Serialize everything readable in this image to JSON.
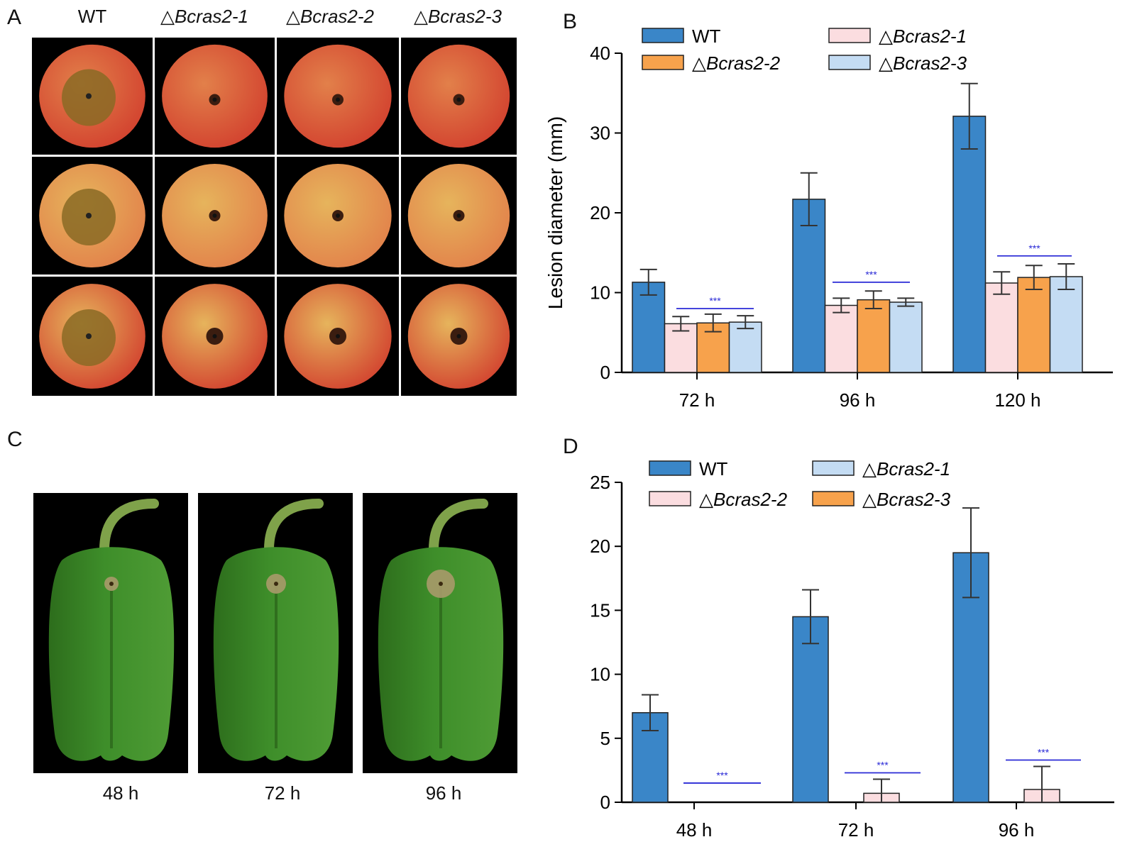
{
  "panels": {
    "a": {
      "letter": "A"
    },
    "b": {
      "letter": "B"
    },
    "c": {
      "letter": "C"
    },
    "d": {
      "letter": "D"
    }
  },
  "apple_grid": {
    "columns": [
      {
        "prefix": "",
        "name": "WT"
      },
      {
        "prefix": "△",
        "name": "Bcras2-1"
      },
      {
        "prefix": "△",
        "name": "Bcras2-2"
      },
      {
        "prefix": "△",
        "name": "Bcras2-3"
      }
    ],
    "lesion_colors": {
      "wt": "#8a6a25",
      "mutant": "#3b1d10"
    },
    "apple_colors": [
      "#d2402e",
      "#e2804a",
      "#e6b45c"
    ]
  },
  "pepper_photos": {
    "labels": [
      "48 h",
      "72 h",
      "96 h"
    ],
    "pepper_color": "#3e8e2a"
  },
  "colors": {
    "wt": "#3a86c8",
    "pink": "#fbdde0",
    "orange": "#f7a24c",
    "lightblue": "#c4dcf3",
    "sig": "#2a2ad6",
    "axis": "#000000",
    "error": "#333333"
  },
  "chart_data": [
    {
      "id": "B",
      "type": "bar",
      "title": "",
      "xlabel": "",
      "ylabel": "Lesion  diameter (mm)",
      "ylim": [
        0,
        40
      ],
      "yticks": [
        0,
        10,
        20,
        30,
        40
      ],
      "categories": [
        "72 h",
        "96 h",
        "120 h"
      ],
      "series": [
        {
          "name": "WT",
          "prefix": "",
          "color_key": "wt",
          "values": [
            11.3,
            21.7,
            32.1
          ],
          "errors": [
            1.6,
            3.3,
            4.1
          ]
        },
        {
          "name": "Bcras2-1",
          "prefix": "△",
          "color_key": "pink",
          "values": [
            6.1,
            8.4,
            11.2
          ],
          "errors": [
            0.9,
            0.9,
            1.4
          ]
        },
        {
          "name": "Bcras2-2",
          "prefix": "△",
          "color_key": "orange",
          "values": [
            6.2,
            9.1,
            11.9
          ],
          "errors": [
            1.1,
            1.1,
            1.5
          ]
        },
        {
          "name": "Bcras2-3",
          "prefix": "△",
          "color_key": "lightblue",
          "values": [
            6.3,
            8.8,
            12.0
          ],
          "errors": [
            0.8,
            0.5,
            1.6
          ]
        }
      ],
      "significance": [
        "***",
        "***",
        "***"
      ],
      "legend": {
        "position": "top",
        "order": [
          0,
          1,
          2,
          3
        ]
      }
    },
    {
      "id": "D",
      "type": "bar",
      "title": "",
      "xlabel": "",
      "ylabel": "",
      "ylim": [
        0,
        25
      ],
      "yticks": [
        0,
        5,
        10,
        15,
        20,
        25
      ],
      "categories": [
        "48 h",
        "72 h",
        "96 h"
      ],
      "series": [
        {
          "name": "WT",
          "prefix": "",
          "color_key": "wt",
          "values": [
            7.0,
            14.5,
            19.5
          ],
          "errors": [
            1.4,
            2.1,
            3.5
          ]
        },
        {
          "name": "Bcras2-1",
          "prefix": "△",
          "color_key": "lightblue",
          "values": [
            0,
            0,
            0
          ],
          "errors": [
            0,
            0,
            0
          ]
        },
        {
          "name": "Bcras2-2",
          "prefix": "△",
          "color_key": "pink",
          "values": [
            0,
            0.7,
            1.0
          ],
          "errors": [
            0,
            1.1,
            1.8
          ]
        },
        {
          "name": "Bcras2-3",
          "prefix": "△",
          "color_key": "orange",
          "values": [
            0,
            0,
            0
          ],
          "errors": [
            0,
            0,
            0
          ]
        }
      ],
      "significance": [
        "***",
        "***",
        "***"
      ],
      "legend": {
        "position": "top",
        "order": [
          0,
          1,
          2,
          3
        ]
      }
    }
  ]
}
